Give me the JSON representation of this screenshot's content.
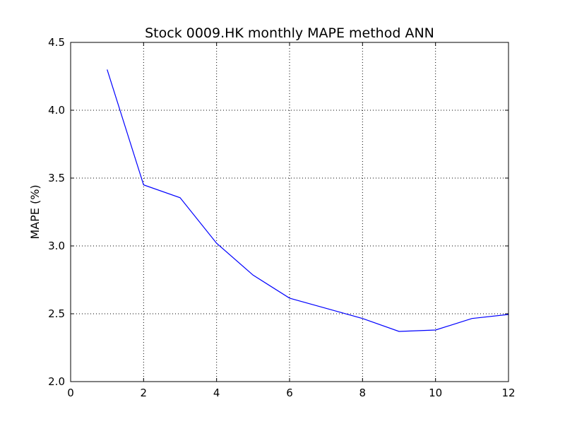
{
  "chart_data": {
    "type": "line",
    "title": "Stock 0009.HK monthly MAPE method ANN",
    "xlabel": "",
    "ylabel": "MAPE (%)",
    "xlim": [
      0,
      12
    ],
    "ylim": [
      2.0,
      4.5
    ],
    "x_ticks": [
      "0",
      "2",
      "4",
      "6",
      "8",
      "10",
      "12"
    ],
    "y_ticks": [
      "2.0",
      "2.5",
      "3.0",
      "3.5",
      "4.0",
      "4.5"
    ],
    "grid": true,
    "series": [
      {
        "color": "#0000ff",
        "x": [
          1,
          2,
          3,
          4,
          5,
          6,
          7,
          8,
          9,
          10,
          11,
          12
        ],
        "values": [
          4.3,
          3.45,
          3.355,
          3.02,
          2.785,
          2.615,
          2.54,
          2.465,
          2.37,
          2.38,
          2.465,
          2.495
        ]
      }
    ]
  }
}
